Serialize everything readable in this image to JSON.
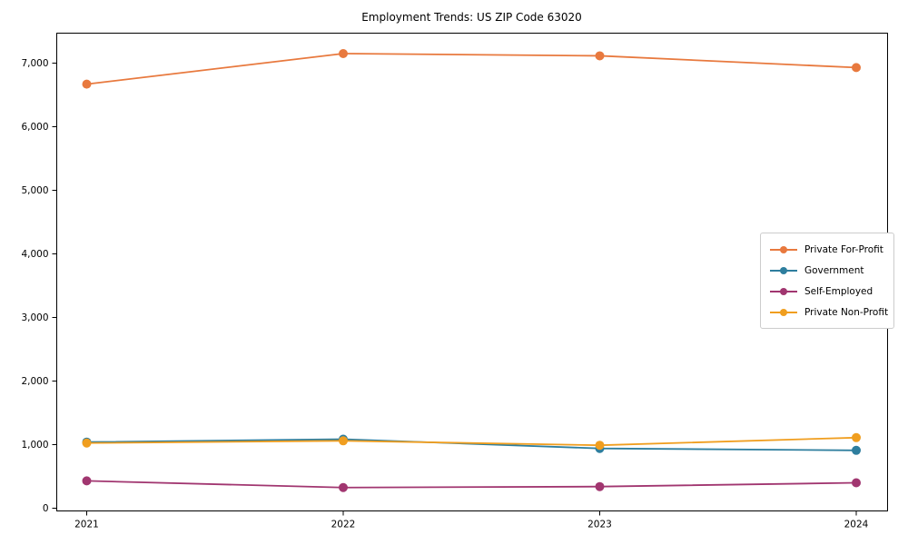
{
  "title": "Employment Trends: US ZIP Code 63020",
  "chart_data": {
    "type": "line",
    "x": [
      2021,
      2022,
      2023,
      2024
    ],
    "xtick_labels": [
      "2021",
      "2022",
      "2023",
      "2024"
    ],
    "yticks": [
      0,
      1000,
      2000,
      3000,
      4000,
      5000,
      6000,
      7000
    ],
    "ytick_labels": [
      "0",
      "1,000",
      "2,000",
      "3,000",
      "4,000",
      "5,000",
      "6,000",
      "7,000"
    ],
    "ylim": [
      0,
      7450
    ],
    "grid": false,
    "legend_position": "center-right",
    "marker": "circle",
    "series": [
      {
        "name": "Private For-Profit",
        "color": "#E8793E",
        "values": [
          6670,
          7150,
          7115,
          6930
        ]
      },
      {
        "name": "Government",
        "color": "#2E7E9E",
        "values": [
          1040,
          1085,
          940,
          910
        ]
      },
      {
        "name": "Self-Employed",
        "color": "#A13670",
        "values": [
          430,
          325,
          340,
          400
        ]
      },
      {
        "name": "Private Non-Profit",
        "color": "#F09E1F",
        "values": [
          1025,
          1060,
          990,
          1110
        ]
      }
    ]
  }
}
